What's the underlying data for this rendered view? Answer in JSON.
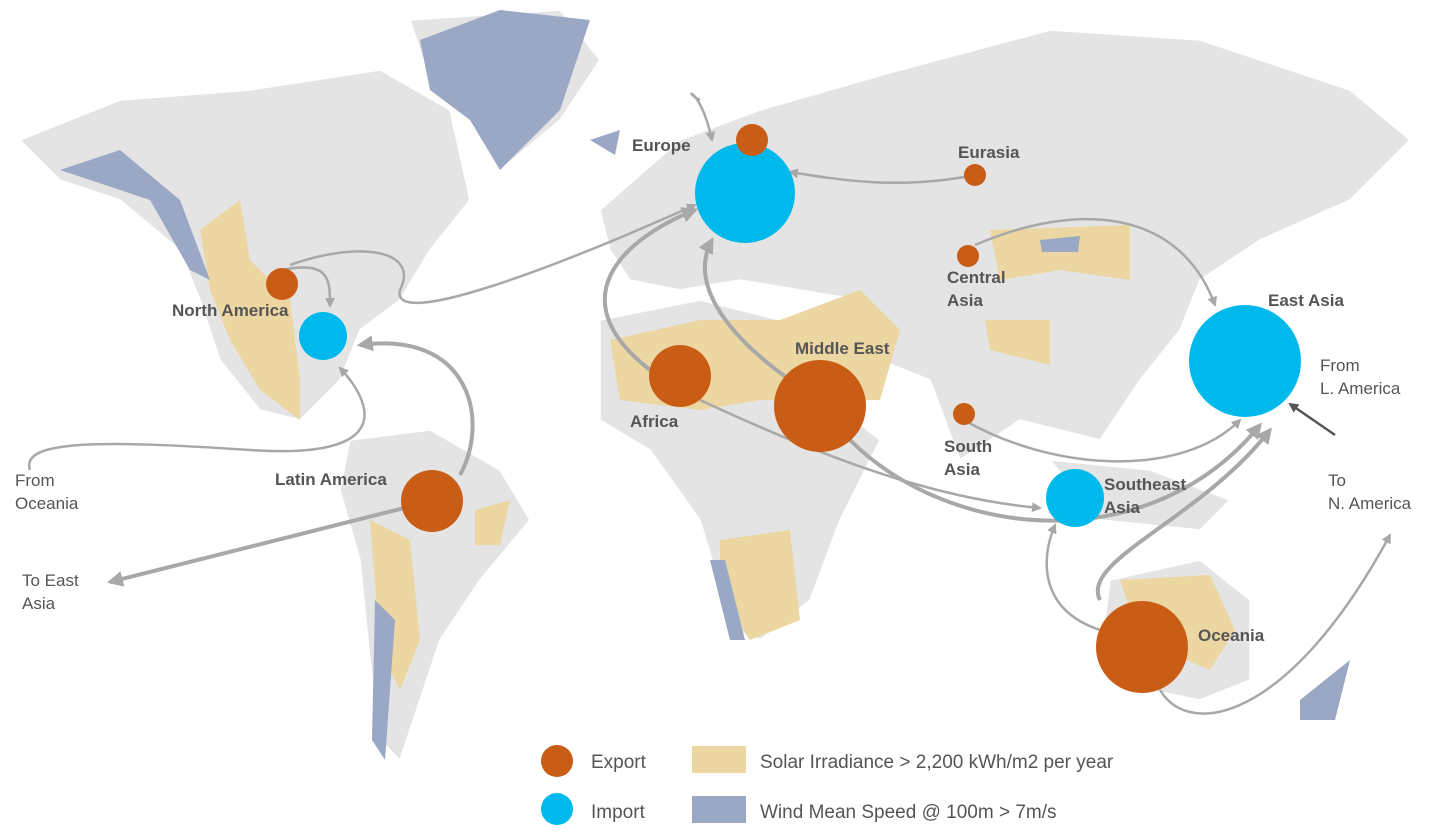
{
  "regions": [
    {
      "label": [
        "Europe"
      ]
    },
    {
      "label": [
        "Eurasia"
      ]
    },
    {
      "label": [
        "North America"
      ]
    },
    {
      "label": [
        "Central",
        "Asia"
      ]
    },
    {
      "label": [
        "East Asia"
      ]
    },
    {
      "label": [
        "Middle East"
      ]
    },
    {
      "label": [
        "Africa"
      ]
    },
    {
      "label": [
        "South",
        "Asia"
      ]
    },
    {
      "label": [
        "Latin America"
      ]
    },
    {
      "label": [
        "Southeast",
        "Asia"
      ]
    },
    {
      "label": [
        "Oceania"
      ]
    }
  ],
  "flow_notes": [
    {
      "label": [
        "From",
        "Oceania"
      ]
    },
    {
      "label": [
        "To East",
        "Asia"
      ]
    },
    {
      "label": [
        "From",
        "L. America"
      ]
    },
    {
      "label": [
        "To",
        "N. America"
      ]
    }
  ],
  "legend": {
    "export": "Export",
    "import": "Import",
    "solar": "Solar Irradiance > 2,200 kWh/m2 per year",
    "wind": "Wind Mean Speed @ 100m > 7m/s"
  }
}
